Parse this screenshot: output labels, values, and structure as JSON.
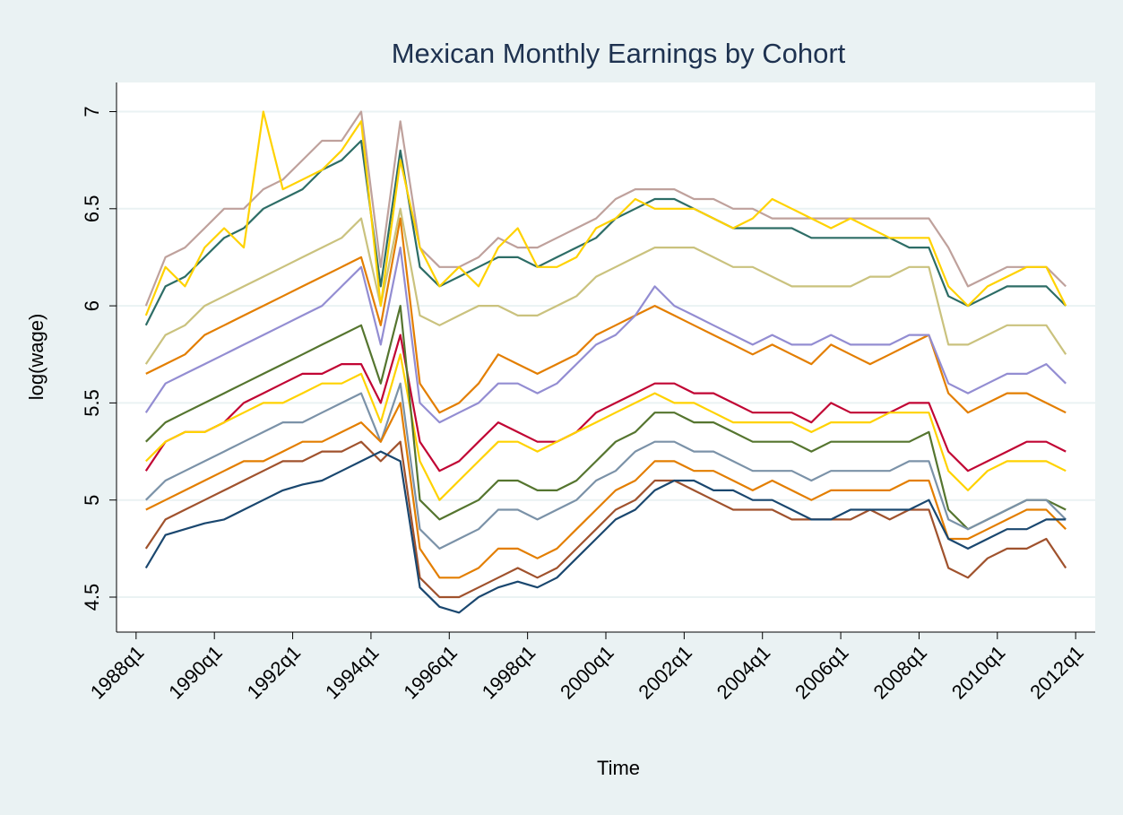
{
  "chart_data": {
    "type": "line",
    "title": "Mexican Monthly Earnings by Cohort",
    "x_label": "Time",
    "y_label": "log(wage)",
    "xlim": [
      110,
      210
    ],
    "ylim": [
      4.32,
      7.15
    ],
    "xticks": [
      {
        "value": 112,
        "label": "1988q1"
      },
      {
        "value": 120,
        "label": "1990q1"
      },
      {
        "value": 128,
        "label": "1992q1"
      },
      {
        "value": 136,
        "label": "1994q1"
      },
      {
        "value": 144,
        "label": "1996q1"
      },
      {
        "value": 152,
        "label": "1998q1"
      },
      {
        "value": 160,
        "label": "2000q1"
      },
      {
        "value": 168,
        "label": "2002q1"
      },
      {
        "value": 176,
        "label": "2004q1"
      },
      {
        "value": 184,
        "label": "2006q1"
      },
      {
        "value": 192,
        "label": "2008q1"
      },
      {
        "value": 200,
        "label": "2010q1"
      },
      {
        "value": 208,
        "label": "2012q1"
      }
    ],
    "yticks": [
      4.5,
      5,
      5.5,
      6,
      6.5,
      7
    ],
    "grid": true,
    "x": [
      113,
      115,
      117,
      119,
      121,
      123,
      125,
      127,
      129,
      131,
      133,
      135,
      137,
      139,
      141,
      143,
      145,
      147,
      149,
      151,
      153,
      155,
      157,
      159,
      161,
      163,
      165,
      167,
      169,
      171,
      173,
      175,
      177,
      179,
      181,
      183,
      185,
      187,
      189,
      191,
      193,
      195,
      197,
      199,
      201,
      203,
      205,
      207
    ],
    "series": [
      {
        "color": "#bfa19c",
        "values": [
          6.0,
          6.25,
          6.3,
          6.4,
          6.5,
          6.5,
          6.6,
          6.65,
          6.75,
          6.85,
          6.85,
          7.0,
          6.2,
          6.95,
          6.3,
          6.2,
          6.2,
          6.25,
          6.35,
          6.3,
          6.3,
          6.35,
          6.4,
          6.45,
          6.55,
          6.6,
          6.6,
          6.6,
          6.55,
          6.55,
          6.5,
          6.5,
          6.45,
          6.45,
          6.45,
          6.45,
          6.45,
          6.45,
          6.45,
          6.45,
          6.45,
          6.3,
          6.1,
          6.15,
          6.2,
          6.2,
          6.2,
          6.1
        ]
      },
      {
        "color": "#2d6d66",
        "values": [
          5.9,
          6.1,
          6.15,
          6.25,
          6.35,
          6.4,
          6.5,
          6.55,
          6.6,
          6.7,
          6.75,
          6.85,
          6.1,
          6.8,
          6.2,
          6.1,
          6.15,
          6.2,
          6.25,
          6.25,
          6.2,
          6.25,
          6.3,
          6.35,
          6.45,
          6.5,
          6.55,
          6.55,
          6.5,
          6.45,
          6.4,
          6.4,
          6.4,
          6.4,
          6.35,
          6.35,
          6.35,
          6.35,
          6.35,
          6.3,
          6.3,
          6.05,
          6.0,
          6.05,
          6.1,
          6.1,
          6.1,
          6.0
        ]
      },
      {
        "color": "#cac27e",
        "values": [
          5.7,
          5.85,
          5.9,
          6.0,
          6.05,
          6.1,
          6.15,
          6.2,
          6.25,
          6.3,
          6.35,
          6.45,
          6.0,
          6.5,
          5.95,
          5.9,
          5.95,
          6.0,
          6.0,
          5.95,
          5.95,
          6.0,
          6.05,
          6.15,
          6.2,
          6.25,
          6.3,
          6.3,
          6.3,
          6.25,
          6.2,
          6.2,
          6.15,
          6.1,
          6.1,
          6.1,
          6.1,
          6.15,
          6.15,
          6.2,
          6.2,
          5.8,
          5.8,
          5.85,
          5.9,
          5.9,
          5.9,
          5.75
        ]
      },
      {
        "color": "#ffd200",
        "values": [
          5.95,
          6.2,
          6.1,
          6.3,
          6.4,
          6.3,
          7.0,
          6.6,
          6.65,
          6.7,
          6.8,
          6.95,
          6.0,
          6.75,
          6.3,
          6.1,
          6.2,
          6.1,
          6.3,
          6.4,
          6.2,
          6.2,
          6.25,
          6.4,
          6.45,
          6.55,
          6.5,
          6.5,
          6.5,
          6.45,
          6.4,
          6.45,
          6.55,
          6.5,
          6.45,
          6.4,
          6.45,
          6.4,
          6.35,
          6.35,
          6.35,
          6.1,
          6.0,
          6.1,
          6.15,
          6.2,
          6.2,
          6.0
        ]
      },
      {
        "color": "#e37e00",
        "values": [
          5.65,
          5.7,
          5.75,
          5.85,
          5.9,
          5.95,
          6.0,
          6.05,
          6.1,
          6.15,
          6.2,
          6.25,
          5.9,
          6.45,
          5.6,
          5.45,
          5.5,
          5.6,
          5.75,
          5.7,
          5.65,
          5.7,
          5.75,
          5.85,
          5.9,
          5.95,
          6.0,
          5.95,
          5.9,
          5.85,
          5.8,
          5.75,
          5.8,
          5.75,
          5.7,
          5.8,
          5.75,
          5.7,
          5.75,
          5.8,
          5.85,
          5.55,
          5.45,
          5.5,
          5.55,
          5.55,
          5.5,
          5.45
        ]
      },
      {
        "color": "#938dd2",
        "values": [
          5.45,
          5.6,
          5.65,
          5.7,
          5.75,
          5.8,
          5.85,
          5.9,
          5.95,
          6.0,
          6.1,
          6.2,
          5.8,
          6.3,
          5.5,
          5.4,
          5.45,
          5.5,
          5.6,
          5.6,
          5.55,
          5.6,
          5.7,
          5.8,
          5.85,
          5.95,
          6.1,
          6.0,
          5.95,
          5.9,
          5.85,
          5.8,
          5.85,
          5.8,
          5.8,
          5.85,
          5.8,
          5.8,
          5.8,
          5.85,
          5.85,
          5.6,
          5.55,
          5.6,
          5.65,
          5.65,
          5.7,
          5.6
        ]
      },
      {
        "color": "#c10534",
        "values": [
          5.15,
          5.3,
          5.35,
          5.35,
          5.4,
          5.5,
          5.55,
          5.6,
          5.65,
          5.65,
          5.7,
          5.7,
          5.5,
          5.85,
          5.3,
          5.15,
          5.2,
          5.3,
          5.4,
          5.35,
          5.3,
          5.3,
          5.35,
          5.45,
          5.5,
          5.55,
          5.6,
          5.6,
          5.55,
          5.55,
          5.5,
          5.45,
          5.45,
          5.45,
          5.4,
          5.5,
          5.45,
          5.45,
          5.45,
          5.5,
          5.5,
          5.25,
          5.15,
          5.2,
          5.25,
          5.3,
          5.3,
          5.25
        ]
      },
      {
        "color": "#ffd200",
        "values": [
          5.2,
          5.3,
          5.35,
          5.35,
          5.4,
          5.45,
          5.5,
          5.5,
          5.55,
          5.6,
          5.6,
          5.65,
          5.4,
          5.75,
          5.2,
          5.0,
          5.1,
          5.2,
          5.3,
          5.3,
          5.25,
          5.3,
          5.35,
          5.4,
          5.45,
          5.5,
          5.55,
          5.5,
          5.5,
          5.45,
          5.4,
          5.4,
          5.4,
          5.4,
          5.35,
          5.4,
          5.4,
          5.4,
          5.45,
          5.45,
          5.45,
          5.15,
          5.05,
          5.15,
          5.2,
          5.2,
          5.2,
          5.15
        ]
      },
      {
        "color": "#55752f",
        "values": [
          5.3,
          5.4,
          5.45,
          5.5,
          5.55,
          5.6,
          5.65,
          5.7,
          5.75,
          5.8,
          5.85,
          5.9,
          5.6,
          6.0,
          5.0,
          4.9,
          4.95,
          5.0,
          5.1,
          5.1,
          5.05,
          5.05,
          5.1,
          5.2,
          5.3,
          5.35,
          5.45,
          5.45,
          5.4,
          5.4,
          5.35,
          5.3,
          5.3,
          5.3,
          5.25,
          5.3,
          5.3,
          5.3,
          5.3,
          5.3,
          5.35,
          4.95,
          4.85,
          4.9,
          4.95,
          5.0,
          5.0,
          4.95
        ]
      },
      {
        "color": "#7b92a8",
        "values": [
          5.0,
          5.1,
          5.15,
          5.2,
          5.25,
          5.3,
          5.35,
          5.4,
          5.4,
          5.45,
          5.5,
          5.55,
          5.3,
          5.6,
          4.85,
          4.75,
          4.8,
          4.85,
          4.95,
          4.95,
          4.9,
          4.95,
          5.0,
          5.1,
          5.15,
          5.25,
          5.3,
          5.3,
          5.25,
          5.25,
          5.2,
          5.15,
          5.15,
          5.15,
          5.1,
          5.15,
          5.15,
          5.15,
          5.15,
          5.2,
          5.2,
          4.9,
          4.85,
          4.9,
          4.95,
          5.0,
          5.0,
          4.9
        ]
      },
      {
        "color": "#e37e00",
        "values": [
          4.95,
          5.0,
          5.05,
          5.1,
          5.15,
          5.2,
          5.2,
          5.25,
          5.3,
          5.3,
          5.35,
          5.4,
          5.3,
          5.5,
          4.75,
          4.6,
          4.6,
          4.65,
          4.75,
          4.75,
          4.7,
          4.75,
          4.85,
          4.95,
          5.05,
          5.1,
          5.2,
          5.2,
          5.15,
          5.15,
          5.1,
          5.05,
          5.1,
          5.05,
          5.0,
          5.05,
          5.05,
          5.05,
          5.05,
          5.1,
          5.1,
          4.8,
          4.8,
          4.85,
          4.9,
          4.95,
          4.95,
          4.85
        ]
      },
      {
        "color": "#a0522d",
        "values": [
          4.75,
          4.9,
          4.95,
          5.0,
          5.05,
          5.1,
          5.15,
          5.2,
          5.2,
          5.25,
          5.25,
          5.3,
          5.2,
          5.3,
          4.6,
          4.5,
          4.5,
          4.55,
          4.6,
          4.65,
          4.6,
          4.65,
          4.75,
          4.85,
          4.95,
          5.0,
          5.1,
          5.1,
          5.05,
          5.0,
          4.95,
          4.95,
          4.95,
          4.9,
          4.9,
          4.9,
          4.9,
          4.95,
          4.9,
          4.95,
          4.95,
          4.65,
          4.6,
          4.7,
          4.75,
          4.75,
          4.8,
          4.65
        ]
      },
      {
        "color": "#1a476f",
        "values": [
          4.65,
          4.82,
          4.85,
          4.88,
          4.9,
          4.95,
          5.0,
          5.05,
          5.08,
          5.1,
          5.15,
          5.2,
          5.25,
          5.2,
          4.55,
          4.45,
          4.42,
          4.5,
          4.55,
          4.58,
          4.55,
          4.6,
          4.7,
          4.8,
          4.9,
          4.95,
          5.05,
          5.1,
          5.1,
          5.05,
          5.05,
          5.0,
          5.0,
          4.95,
          4.9,
          4.9,
          4.95,
          4.95,
          4.95,
          4.95,
          5.0,
          4.8,
          4.75,
          4.8,
          4.85,
          4.85,
          4.9,
          4.9
        ]
      }
    ]
  }
}
